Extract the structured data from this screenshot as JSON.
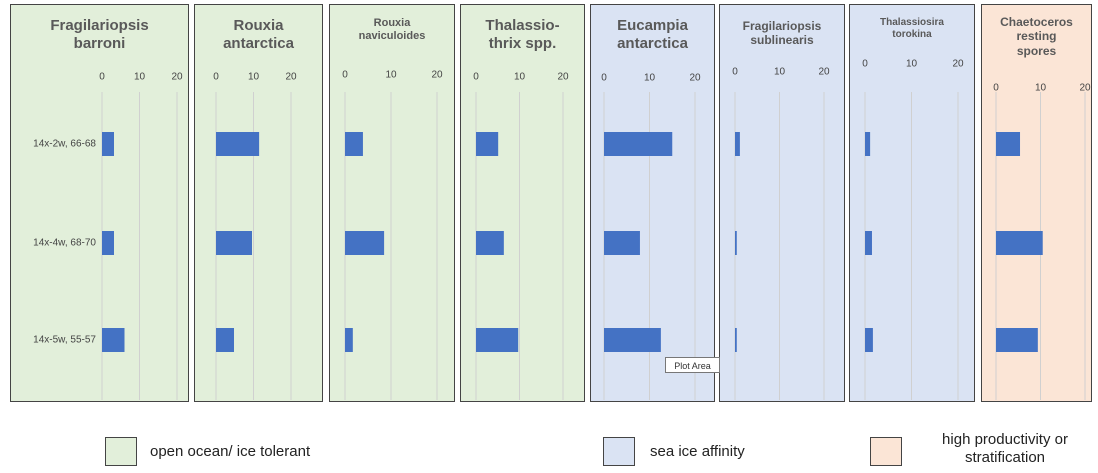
{
  "chart_data": [
    {
      "type": "bar",
      "orientation": "horizontal",
      "title": "Fragilariopsis\nbarroni",
      "background": "#e2efda",
      "color": "#4472c4",
      "categories": [
        "14x-2w, 66-68",
        "14x-4w, 68-70",
        "14x-5w, 55-57"
      ],
      "values": [
        3.2,
        3.2,
        6
      ],
      "xlim": [
        0,
        20
      ],
      "xticks": [
        0,
        10,
        20
      ],
      "grid": true
    },
    {
      "type": "bar",
      "orientation": "horizontal",
      "title": "Rouxia\nantarctica",
      "background": "#e2efda",
      "color": "#4472c4",
      "categories": [
        null,
        null,
        null
      ],
      "values": [
        11.5,
        9.6,
        4.8
      ],
      "xlim": [
        0,
        20
      ],
      "xticks": [
        0,
        10,
        20
      ],
      "grid": true
    },
    {
      "type": "bar",
      "orientation": "horizontal",
      "title": "Rouxia\nnaviculoides",
      "background": "#e2efda",
      "color": "#4472c4",
      "categories": [
        null,
        null,
        null
      ],
      "values": [
        3.9,
        8.5,
        1.7
      ],
      "xlim": [
        0,
        20
      ],
      "xticks": [
        0,
        10,
        20
      ],
      "grid": true
    },
    {
      "type": "bar",
      "orientation": "horizontal",
      "title": "Thalassio-\nthrix spp.",
      "background": "#e2efda",
      "color": "#4472c4",
      "categories": [
        null,
        null,
        null
      ],
      "values": [
        5.1,
        6.4,
        9.7
      ],
      "xlim": [
        0,
        20
      ],
      "xticks": [
        0,
        10,
        20
      ],
      "grid": true
    },
    {
      "type": "bar",
      "orientation": "horizontal",
      "title": "Eucampia\nantarctica",
      "background": "#dae3f3",
      "color": "#4472c4",
      "categories": [
        null,
        null,
        null
      ],
      "values": [
        15,
        7.9,
        12.5
      ],
      "xlim": [
        0,
        20
      ],
      "xticks": [
        0,
        10,
        20
      ],
      "grid": true
    },
    {
      "type": "bar",
      "orientation": "horizontal",
      "title": "Fragilariopsis\nsublinearis",
      "background": "#dae3f3",
      "color": "#4472c4",
      "categories": [
        null,
        null,
        null
      ],
      "values": [
        1.1,
        0.4,
        0.4
      ],
      "xlim": [
        0,
        20
      ],
      "xticks": [
        0,
        10,
        20
      ],
      "grid": true
    },
    {
      "type": "bar",
      "orientation": "horizontal",
      "title": "Thalassiosira\ntorokina",
      "background": "#dae3f3",
      "color": "#4472c4",
      "categories": [
        null,
        null,
        null
      ],
      "values": [
        1.1,
        1.5,
        1.7
      ],
      "xlim": [
        0,
        20
      ],
      "xticks": [
        0,
        10,
        20
      ],
      "grid": true
    },
    {
      "type": "bar",
      "orientation": "horizontal",
      "title": "Chaetoceros\nresting\nspores",
      "background": "#fbe5d6",
      "color": "#4472c4",
      "categories": [
        null,
        null,
        null
      ],
      "values": [
        5.4,
        10.5,
        9.4
      ],
      "xlim": [
        0,
        20
      ],
      "xticks": [
        0,
        10,
        20
      ],
      "grid": true
    }
  ],
  "legend": [
    {
      "label": "open ocean/ ice tolerant",
      "color": "#e2efda"
    },
    {
      "label": "sea ice affinity",
      "color": "#dae3f3"
    },
    {
      "label": "high productivity or\nstratification",
      "color": "#fbe5d6"
    }
  ],
  "tooltip": "Plot Area"
}
